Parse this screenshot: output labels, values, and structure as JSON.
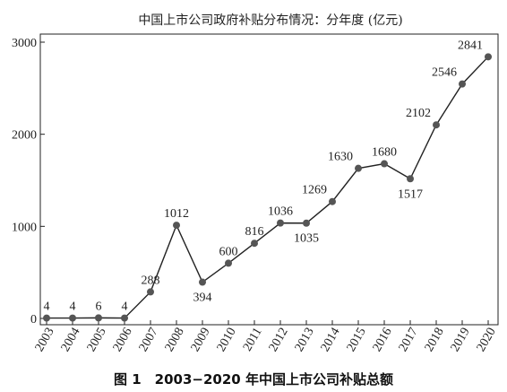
{
  "caption": "图 1　2003−2020 年中国上市公司补贴总额",
  "chart_data": {
    "type": "line",
    "title": "中国上市公司政府补贴分布情况：分年度 (亿元)",
    "xlabel": "",
    "ylabel": "",
    "categories": [
      "2003",
      "2004",
      "2005",
      "2006",
      "2007",
      "2008",
      "2009",
      "2010",
      "2011",
      "2012",
      "2013",
      "2014",
      "2015",
      "2016",
      "2017",
      "2018",
      "2019",
      "2020"
    ],
    "values": [
      4,
      4,
      6,
      4,
      288,
      1012,
      394,
      600,
      816,
      1036,
      1035,
      1269,
      1630,
      1680,
      1517,
      2102,
      2546,
      2841
    ],
    "ylim": [
      0,
      3000
    ],
    "yticks": [
      0,
      1000,
      2000,
      3000
    ],
    "grid": false,
    "colors": {
      "line": "#222222",
      "marker": "#555555",
      "axis": "#222222"
    }
  }
}
